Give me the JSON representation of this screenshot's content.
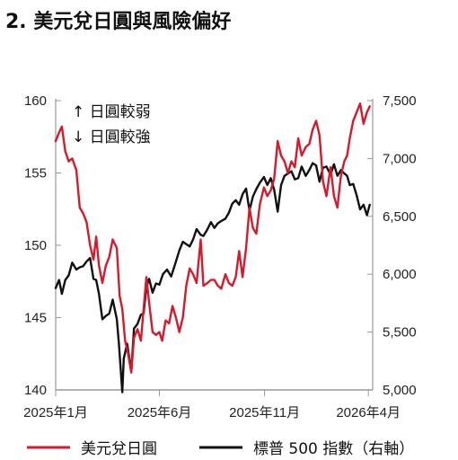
{
  "title": "2. 美元兌日圓與風險偏好",
  "annotations": {
    "up": "↑ 日圓較弱",
    "down": "↓ 日圓較強"
  },
  "colors": {
    "usdjpy": "#d7192a",
    "sp500": "#111111",
    "axis": "#999999"
  },
  "chart_data": {
    "type": "line",
    "title": "2. 美元兌日圓與風險偏好",
    "x_tick_labels": [
      "2025年1月",
      "2025年6月",
      "2025年11月",
      "2026年4月"
    ],
    "x_tick_dates": [
      "2025-01-01",
      "2025-06-01",
      "2025-11-01",
      "2026-04-01"
    ],
    "x_range": [
      "2025-01-01",
      "2026-04-06"
    ],
    "y_left": {
      "ylim": [
        140,
        160
      ],
      "ticks": [
        140,
        145,
        150,
        155,
        160
      ],
      "labels": [
        "140",
        "145",
        "150",
        "155",
        "160"
      ]
    },
    "y_right": {
      "ylim": [
        5000,
        7500
      ],
      "ticks": [
        5000,
        5500,
        6000,
        6500,
        7000,
        7500
      ],
      "labels": [
        "5,000",
        "5,500",
        "6,000",
        "6,500",
        "7,000",
        "7,500"
      ]
    },
    "grid": false,
    "legend_position": "bottom",
    "series": [
      {
        "name": "美元兌日圓",
        "axis": "left",
        "color": "#d7192a",
        "points": [
          [
            "2025-01-01",
            157.2
          ],
          [
            "2025-01-06",
            157.8
          ],
          [
            "2025-01-10",
            158.2
          ],
          [
            "2025-01-15",
            156.5
          ],
          [
            "2025-01-20",
            155.8
          ],
          [
            "2025-01-25",
            156.0
          ],
          [
            "2025-01-31",
            155.2
          ],
          [
            "2025-02-05",
            152.6
          ],
          [
            "2025-02-10",
            152.2
          ],
          [
            "2025-02-15",
            151.6
          ],
          [
            "2025-02-20",
            150.0
          ],
          [
            "2025-02-25",
            149.0
          ],
          [
            "2025-03-01",
            150.6
          ],
          [
            "2025-03-05",
            148.6
          ],
          [
            "2025-03-10",
            147.4
          ],
          [
            "2025-03-15",
            148.6
          ],
          [
            "2025-03-20",
            149.2
          ],
          [
            "2025-03-25",
            150.4
          ],
          [
            "2025-03-31",
            149.8
          ],
          [
            "2025-04-04",
            146.5
          ],
          [
            "2025-04-08",
            145.6
          ],
          [
            "2025-04-12",
            143.4
          ],
          [
            "2025-04-16",
            142.6
          ],
          [
            "2025-04-21",
            141.2
          ],
          [
            "2025-04-25",
            143.6
          ],
          [
            "2025-04-30",
            144.2
          ],
          [
            "2025-05-05",
            143.4
          ],
          [
            "2025-05-09",
            145.6
          ],
          [
            "2025-05-13",
            147.8
          ],
          [
            "2025-05-17",
            146.0
          ],
          [
            "2025-05-22",
            144.0
          ],
          [
            "2025-05-27",
            143.8
          ],
          [
            "2025-06-01",
            144.0
          ],
          [
            "2025-06-05",
            143.4
          ],
          [
            "2025-06-10",
            144.8
          ],
          [
            "2025-06-15",
            144.6
          ],
          [
            "2025-06-20",
            145.8
          ],
          [
            "2025-06-25",
            145.0
          ],
          [
            "2025-06-30",
            144.0
          ],
          [
            "2025-07-05",
            145.0
          ],
          [
            "2025-07-10",
            147.2
          ],
          [
            "2025-07-15",
            148.4
          ],
          [
            "2025-07-20",
            148.0
          ],
          [
            "2025-07-25",
            147.4
          ],
          [
            "2025-07-31",
            150.4
          ],
          [
            "2025-08-04",
            147.2
          ],
          [
            "2025-08-10",
            147.4
          ],
          [
            "2025-08-15",
            147.6
          ],
          [
            "2025-08-20",
            147.6
          ],
          [
            "2025-08-25",
            147.2
          ],
          [
            "2025-08-30",
            147.0
          ],
          [
            "2025-09-05",
            148.0
          ],
          [
            "2025-09-10",
            147.4
          ],
          [
            "2025-09-15",
            147.2
          ],
          [
            "2025-09-20",
            147.8
          ],
          [
            "2025-09-25",
            149.6
          ],
          [
            "2025-09-30",
            147.8
          ],
          [
            "2025-10-05",
            149.8
          ],
          [
            "2025-10-10",
            152.6
          ],
          [
            "2025-10-15",
            151.2
          ],
          [
            "2025-10-20",
            150.8
          ],
          [
            "2025-10-25",
            152.8
          ],
          [
            "2025-10-31",
            154.0
          ],
          [
            "2025-11-05",
            153.4
          ],
          [
            "2025-11-10",
            153.8
          ],
          [
            "2025-11-15",
            154.6
          ],
          [
            "2025-11-20",
            157.2
          ],
          [
            "2025-11-25",
            156.2
          ],
          [
            "2025-11-30",
            155.8
          ],
          [
            "2025-12-05",
            155.0
          ],
          [
            "2025-12-10",
            155.8
          ],
          [
            "2025-12-15",
            155.4
          ],
          [
            "2025-12-20",
            157.4
          ],
          [
            "2025-12-25",
            156.2
          ],
          [
            "2025-12-31",
            156.8
          ],
          [
            "2026-01-05",
            157.0
          ],
          [
            "2026-01-10",
            158.0
          ],
          [
            "2026-01-15",
            158.6
          ],
          [
            "2026-01-20",
            157.6
          ],
          [
            "2026-01-25",
            154.4
          ],
          [
            "2026-01-30",
            153.4
          ],
          [
            "2026-02-05",
            155.4
          ],
          [
            "2026-02-10",
            153.4
          ],
          [
            "2026-02-15",
            152.6
          ],
          [
            "2026-02-20",
            154.8
          ],
          [
            "2026-02-25",
            155.8
          ],
          [
            "2026-03-01",
            156.2
          ],
          [
            "2026-03-05",
            157.4
          ],
          [
            "2026-03-10",
            158.6
          ],
          [
            "2026-03-15",
            159.2
          ],
          [
            "2026-03-20",
            159.8
          ],
          [
            "2026-03-25",
            158.4
          ],
          [
            "2026-03-30",
            159.2
          ],
          [
            "2026-04-03",
            159.6
          ]
        ]
      },
      {
        "name": "標普 500 指數（右軸）",
        "axis": "right",
        "color": "#111111",
        "points": [
          [
            "2025-01-01",
            5880
          ],
          [
            "2025-01-06",
            5950
          ],
          [
            "2025-01-10",
            5830
          ],
          [
            "2025-01-15",
            5950
          ],
          [
            "2025-01-20",
            5990
          ],
          [
            "2025-01-25",
            6100
          ],
          [
            "2025-01-31",
            6040
          ],
          [
            "2025-02-05",
            6060
          ],
          [
            "2025-02-10",
            6070
          ],
          [
            "2025-02-15",
            6110
          ],
          [
            "2025-02-20",
            6140
          ],
          [
            "2025-02-25",
            5960
          ],
          [
            "2025-03-01",
            5950
          ],
          [
            "2025-03-05",
            5830
          ],
          [
            "2025-03-10",
            5610
          ],
          [
            "2025-03-15",
            5640
          ],
          [
            "2025-03-20",
            5660
          ],
          [
            "2025-03-25",
            5780
          ],
          [
            "2025-03-31",
            5610
          ],
          [
            "2025-04-03",
            5400
          ],
          [
            "2025-04-08",
            4980
          ],
          [
            "2025-04-10",
            5270
          ],
          [
            "2025-04-15",
            5400
          ],
          [
            "2025-04-21",
            5160
          ],
          [
            "2025-04-25",
            5530
          ],
          [
            "2025-04-30",
            5570
          ],
          [
            "2025-05-05",
            5650
          ],
          [
            "2025-05-09",
            5660
          ],
          [
            "2025-05-13",
            5890
          ],
          [
            "2025-05-17",
            5960
          ],
          [
            "2025-05-22",
            5840
          ],
          [
            "2025-05-27",
            5920
          ],
          [
            "2025-06-01",
            5910
          ],
          [
            "2025-06-06",
            6000
          ],
          [
            "2025-06-12",
            6040
          ],
          [
            "2025-06-18",
            5980
          ],
          [
            "2025-06-24",
            6090
          ],
          [
            "2025-06-30",
            6205
          ],
          [
            "2025-07-05",
            6280
          ],
          [
            "2025-07-10",
            6260
          ],
          [
            "2025-07-15",
            6240
          ],
          [
            "2025-07-20",
            6300
          ],
          [
            "2025-07-25",
            6390
          ],
          [
            "2025-07-31",
            6340
          ],
          [
            "2025-08-04",
            6330
          ],
          [
            "2025-08-10",
            6390
          ],
          [
            "2025-08-15",
            6450
          ],
          [
            "2025-08-20",
            6400
          ],
          [
            "2025-08-25",
            6440
          ],
          [
            "2025-08-30",
            6460
          ],
          [
            "2025-09-05",
            6480
          ],
          [
            "2025-09-10",
            6530
          ],
          [
            "2025-09-15",
            6610
          ],
          [
            "2025-09-20",
            6640
          ],
          [
            "2025-09-25",
            6600
          ],
          [
            "2025-09-30",
            6690
          ],
          [
            "2025-10-05",
            6740
          ],
          [
            "2025-10-10",
            6550
          ],
          [
            "2025-10-15",
            6670
          ],
          [
            "2025-10-20",
            6735
          ],
          [
            "2025-10-25",
            6790
          ],
          [
            "2025-10-31",
            6840
          ],
          [
            "2025-11-05",
            6770
          ],
          [
            "2025-11-10",
            6830
          ],
          [
            "2025-11-15",
            6730
          ],
          [
            "2025-11-20",
            6540
          ],
          [
            "2025-11-25",
            6770
          ],
          [
            "2025-11-30",
            6850
          ],
          [
            "2025-12-05",
            6870
          ],
          [
            "2025-12-10",
            6890
          ],
          [
            "2025-12-15",
            6820
          ],
          [
            "2025-12-20",
            6830
          ],
          [
            "2025-12-25",
            6930
          ],
          [
            "2025-12-31",
            6850
          ],
          [
            "2026-01-05",
            6900
          ],
          [
            "2026-01-10",
            6960
          ],
          [
            "2026-01-15",
            6940
          ],
          [
            "2026-01-20",
            6800
          ],
          [
            "2026-01-25",
            6920
          ],
          [
            "2026-01-30",
            6930
          ],
          [
            "2026-02-05",
            6860
          ],
          [
            "2026-02-10",
            6950
          ],
          [
            "2026-02-15",
            6850
          ],
          [
            "2026-02-20",
            6900
          ],
          [
            "2026-02-25",
            6870
          ],
          [
            "2026-03-01",
            6850
          ],
          [
            "2026-03-05",
            6770
          ],
          [
            "2026-03-10",
            6780
          ],
          [
            "2026-03-15",
            6680
          ],
          [
            "2026-03-20",
            6560
          ],
          [
            "2026-03-25",
            6600
          ],
          [
            "2026-03-30",
            6510
          ],
          [
            "2026-04-03",
            6600
          ]
        ]
      }
    ]
  }
}
